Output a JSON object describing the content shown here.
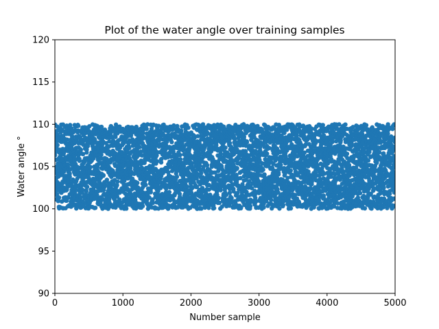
{
  "chart_data": {
    "type": "scatter",
    "title": "Plot of the water angle over training samples",
    "xlabel": "Number sample",
    "ylabel": "Water angle °",
    "xlim": [
      0,
      5000
    ],
    "ylim": [
      90,
      120
    ],
    "xticks": [
      "0",
      "1000",
      "2000",
      "3000",
      "4000",
      "5000"
    ],
    "yticks": [
      "90",
      "95",
      "100",
      "105",
      "110",
      "115",
      "120"
    ],
    "grid": false,
    "legend": "none",
    "series": [
      {
        "color": "#1f77b4",
        "marker": "circle",
        "x": [
          0,
          5000
        ],
        "y_range": [
          100,
          110
        ],
        "n": 5000,
        "distribution": "uniform"
      }
    ]
  }
}
